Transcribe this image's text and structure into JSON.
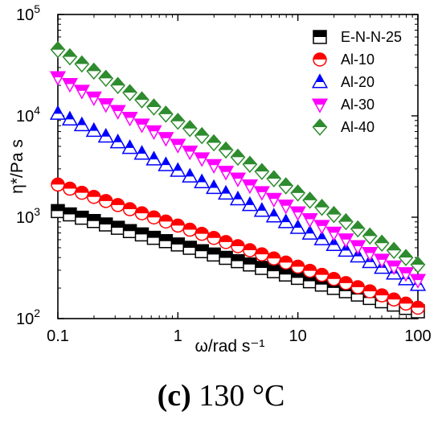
{
  "caption": {
    "panel": "(c)",
    "text": "130 °C"
  },
  "chart_data": {
    "type": "scatter",
    "xscale": "log",
    "yscale": "log",
    "xlim": [
      0.1,
      100
    ],
    "ylim": [
      100,
      100000
    ],
    "xlabel": "ω/rad s⁻¹",
    "ylabel": "η*/Pa s",
    "xticks": [
      {
        "value": 0.1,
        "label": "0.1"
      },
      {
        "value": 1,
        "label": "1"
      },
      {
        "value": 10,
        "label": "10"
      },
      {
        "value": 100,
        "label": "100"
      }
    ],
    "yticks": [
      {
        "value": 100,
        "base": "10",
        "exp": "2"
      },
      {
        "value": 1000,
        "base": "10",
        "exp": "3"
      },
      {
        "value": 10000,
        "base": "10",
        "exp": "4"
      },
      {
        "value": 100000,
        "base": "10",
        "exp": "5"
      }
    ],
    "grid": false,
    "legend_position": "top-right",
    "x": [
      0.1,
      0.1259,
      0.1585,
      0.1995,
      0.2512,
      0.3162,
      0.3981,
      0.5012,
      0.631,
      0.7943,
      1,
      1.259,
      1.585,
      1.995,
      2.512,
      3.162,
      3.981,
      5.012,
      6.31,
      7.943,
      10,
      12.59,
      15.85,
      19.95,
      25.12,
      31.62,
      39.81,
      50.12,
      63.1,
      79.43,
      100
    ],
    "series": [
      {
        "name": "E-N-N-25",
        "marker": "square",
        "fill": "top-black",
        "color": "#000000",
        "y_start": 1150,
        "y_end": 118,
        "y_approx_log_linear_between": [
          1150,
          118
        ]
      },
      {
        "name": "Al-10",
        "marker": "circle",
        "fill": "top-red",
        "color": "#ff0000",
        "y_start": 2100,
        "y_end": 128,
        "y_approx_log_linear_between": [
          2100,
          128
        ]
      },
      {
        "name": "Al-20",
        "marker": "triangle-up",
        "fill": "top-blue",
        "color": "#0000ff",
        "y_start": 10500,
        "y_end": 215,
        "y_approx_log_linear_between": [
          10500,
          215
        ]
      },
      {
        "name": "Al-30",
        "marker": "triangle-down",
        "fill": "top-magenta",
        "color": "#ff00ff",
        "y_start": 24000,
        "y_end": 240,
        "y_approx_log_linear_between": [
          24000,
          240
        ]
      },
      {
        "name": "Al-40",
        "marker": "diamond",
        "fill": "top-green",
        "color": "#2e8b2e",
        "y_start": 45000,
        "y_end": 340,
        "y_approx_log_linear_between": [
          45000,
          340
        ]
      }
    ]
  }
}
